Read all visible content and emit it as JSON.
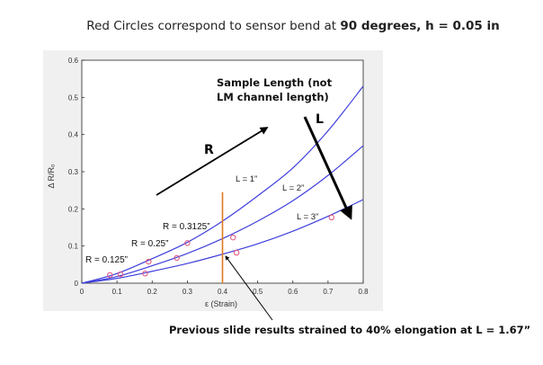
{
  "title": {
    "prefix": "Red Circles correspond to sensor bend at ",
    "bold": "90 degrees, h = 0.05 in"
  },
  "annotations": {
    "sample_length_line1": "Sample Length (not",
    "sample_length_line2": "LM channel length)",
    "L_arrow_label": "L",
    "R_arrow_label": "R",
    "bottom_note": "Previous slide results strained to 40% elongation at L = 1.67”"
  },
  "colors": {
    "curve": "#3f3fdc",
    "markers": "#e0507a",
    "vertical_line": "#e07820",
    "plot_bg": "#ffffff",
    "frame_bg": "#f0f0f0"
  },
  "chart_data": {
    "type": "line",
    "xlabel": "ε (Strain)",
    "ylabel": "Δ R/Rₒ",
    "xlim": [
      0,
      0.8
    ],
    "ylim": [
      0,
      0.6
    ],
    "xticks": [
      "0",
      "0.1",
      "0.2",
      "0.3",
      "0.4",
      "0.5",
      "0.6",
      "0.7",
      "0.8"
    ],
    "yticks": [
      "0",
      "0.1",
      "0.2",
      "0.3",
      "0.4",
      "0.5",
      "0.6"
    ],
    "grid": false,
    "series": [
      {
        "name": "L = 1”",
        "x": [
          0,
          0.1,
          0.2,
          0.3,
          0.4,
          0.5,
          0.6,
          0.7,
          0.8
        ],
        "y": [
          0,
          0.026,
          0.066,
          0.11,
          0.167,
          0.235,
          0.31,
          0.41,
          0.53
        ]
      },
      {
        "name": "L = 2”",
        "x": [
          0,
          0.1,
          0.2,
          0.3,
          0.4,
          0.5,
          0.6,
          0.7,
          0.8
        ],
        "y": [
          0,
          0.018,
          0.047,
          0.08,
          0.12,
          0.167,
          0.222,
          0.29,
          0.37
        ]
      },
      {
        "name": "L = 3”",
        "x": [
          0,
          0.1,
          0.2,
          0.3,
          0.4,
          0.5,
          0.6,
          0.7,
          0.8
        ],
        "y": [
          0,
          0.013,
          0.032,
          0.053,
          0.078,
          0.106,
          0.14,
          0.18,
          0.225
        ]
      }
    ],
    "markers": [
      {
        "x": 0.08,
        "y": 0.022
      },
      {
        "x": 0.11,
        "y": 0.024
      },
      {
        "x": 0.18,
        "y": 0.026
      },
      {
        "x": 0.19,
        "y": 0.058
      },
      {
        "x": 0.27,
        "y": 0.068
      },
      {
        "x": 0.3,
        "y": 0.108
      },
      {
        "x": 0.43,
        "y": 0.123
      },
      {
        "x": 0.44,
        "y": 0.082
      },
      {
        "x": 0.71,
        "y": 0.177
      }
    ],
    "radius_labels": [
      {
        "text": "R = 0.125”"
      },
      {
        "text": "R = 0.25”"
      },
      {
        "text": "R = 0.3125”"
      }
    ],
    "vertical_line": {
      "x": 0.4,
      "y_from": 0,
      "y_to": 0.245
    }
  }
}
